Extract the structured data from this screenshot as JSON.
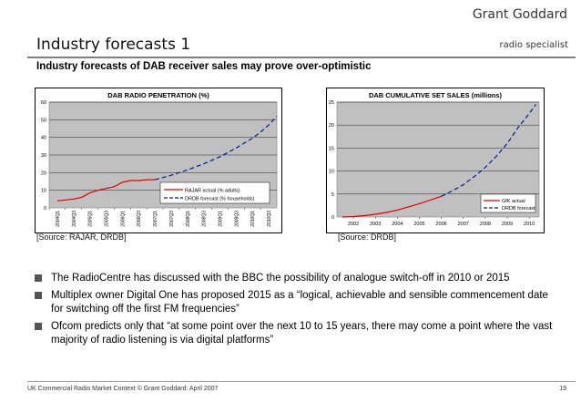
{
  "header": {
    "brand_name": "Grant Goddard",
    "brand_tag": "radio specialist",
    "page_title": "Industry forecasts 1",
    "subtitle": "Industry forecasts of DAB receiver sales may prove over-optimistic"
  },
  "sources": {
    "left": "[Source: RAJAR, DRDB]",
    "right": "[Source: DRDB]"
  },
  "bullets": [
    "The RadioCentre has discussed with the BBC the possibility of analogue switch-off in 2010 or 2015",
    "Multiplex owner Digital One has proposed 2015 as a “logical, achievable and sensible commencement date for switching off the first FM frequencies”",
    "Ofcom predicts only that “at some point over the next 10 to 15 years, there may come a point where the vast majority of radio listening is via digital platforms”"
  ],
  "footer": {
    "text": "UK Commercial Radio Market Context © Grant Goddard: April 2007",
    "page_number": "19"
  },
  "colors": {
    "actual": "#e00000",
    "forecast": "#001e8c",
    "plot_bg": "#c0c0c0",
    "rule": "#7f7f7f"
  },
  "chart_data": [
    {
      "type": "line",
      "title": "DAB RADIO PENETRATION (%)",
      "xlabel": "",
      "ylabel": "",
      "ylim": [
        0,
        60
      ],
      "yticks": [
        0,
        10,
        20,
        30,
        40,
        50,
        60
      ],
      "categories": [
        "2004Q1",
        "2004Q3",
        "2005Q1",
        "2005Q3",
        "2006Q1",
        "2006Q3",
        "2007Q1",
        "2007Q3",
        "2008Q1",
        "2008Q3",
        "2009Q1",
        "2009Q3",
        "2010Q1",
        "2010Q3"
      ],
      "series": [
        {
          "name": "RAJAR actual (% adults)",
          "style": "solid",
          "x": [
            0,
            0.5,
            1,
            1.5,
            2,
            2.5,
            3,
            3.5,
            4,
            4.5,
            5,
            5.5,
            6
          ],
          "values": [
            4,
            4.5,
            5,
            6,
            8.5,
            10,
            11,
            12,
            14.5,
            15.5,
            15.5,
            16,
            16
          ]
        },
        {
          "name": "DRDB forecast (% households)",
          "style": "dashed",
          "x": [
            6,
            6.5,
            7,
            7.5,
            8,
            8.5,
            9,
            9.5,
            10,
            10.5,
            11,
            11.5,
            12,
            12.5,
            13,
            13.5
          ],
          "values": [
            16,
            17.2,
            18.5,
            20,
            21.5,
            23.3,
            25,
            27,
            29,
            31.5,
            34,
            36.8,
            39.5,
            43,
            47,
            52
          ]
        }
      ],
      "legend": "bottom-right"
    },
    {
      "type": "line",
      "title": "DAB CUMULATIVE SET SALES (millions)",
      "xlabel": "",
      "ylabel": "",
      "ylim": [
        0,
        25
      ],
      "yticks": [
        0,
        5,
        10,
        15,
        20,
        25
      ],
      "categories": [
        "2002",
        "2003",
        "2004",
        "2005",
        "2006",
        "2007",
        "2008",
        "2009",
        "2010"
      ],
      "series": [
        {
          "name": "GfK actual",
          "style": "solid",
          "x": [
            2001.5,
            2002,
            2002.5,
            2003,
            2003.5,
            2004,
            2004.5,
            2005,
            2005.5,
            2006
          ],
          "values": [
            0,
            0.1,
            0.3,
            0.6,
            1.0,
            1.5,
            2.2,
            2.9,
            3.7,
            4.5
          ]
        },
        {
          "name": "DRDB forecast",
          "style": "dashed",
          "x": [
            2006,
            2006.5,
            2007,
            2007.5,
            2008,
            2008.5,
            2009,
            2009.5,
            2010,
            2010.3
          ],
          "values": [
            4.5,
            5.7,
            7.0,
            8.8,
            10.8,
            13.2,
            16.0,
            19.5,
            22.5,
            24.5
          ]
        }
      ],
      "legend": "bottom-right"
    }
  ]
}
